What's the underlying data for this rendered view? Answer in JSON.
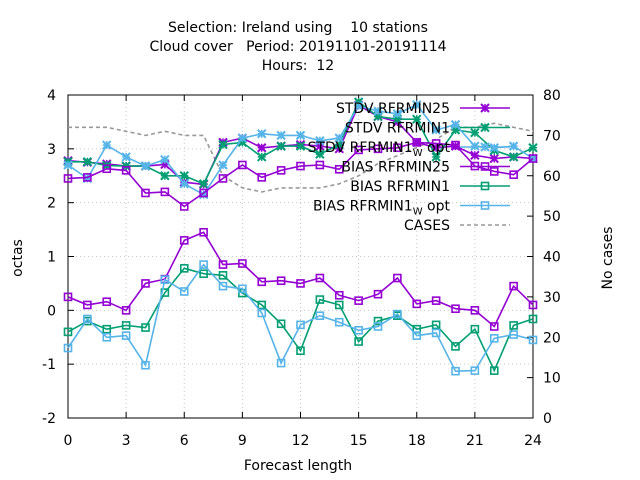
{
  "chart_data": {
    "type": "line",
    "title_lines": [
      "Selection: Ireland using    10 stations",
      "Cloud cover   Period: 20191101-20191114",
      "Hours:  12"
    ],
    "xlabel": "Forecast length",
    "ylabel": "octas",
    "y2label": "No cases",
    "xlim": [
      0,
      24
    ],
    "ylim": [
      -2,
      4
    ],
    "y2lim": [
      0,
      80
    ],
    "x_ticks": [
      0,
      3,
      6,
      9,
      12,
      15,
      18,
      21,
      24
    ],
    "y_ticks": [
      -2,
      -1,
      0,
      1,
      2,
      3,
      4
    ],
    "y2_ticks": [
      0,
      10,
      20,
      30,
      40,
      50,
      60,
      70,
      80
    ],
    "grid": true,
    "legend_position": "top-right",
    "x": [
      0,
      1,
      2,
      3,
      4,
      5,
      6,
      7,
      8,
      9,
      10,
      11,
      12,
      13,
      14,
      15,
      16,
      17,
      18,
      19,
      20,
      21,
      22,
      23,
      24
    ],
    "series": [
      {
        "name": "STDV RFRMIN25",
        "axis": "y",
        "marker": "x",
        "color": "#9400d3",
        "dash": false,
        "values": [
          2.78,
          2.75,
          2.72,
          2.68,
          2.68,
          2.71,
          2.38,
          2.34,
          3.12,
          3.2,
          3.02,
          3.05,
          3.08,
          3.05,
          3.0,
          3.81,
          3.6,
          3.5,
          3.12,
          3.02,
          3.05,
          2.88,
          2.82,
          2.85,
          2.82
        ]
      },
      {
        "name": "STDV RFRMIN1",
        "axis": "y",
        "marker": "x",
        "color": "#009e73",
        "dash": false,
        "values": [
          2.76,
          2.76,
          2.69,
          2.68,
          2.68,
          2.5,
          2.5,
          2.35,
          3.08,
          3.12,
          2.85,
          3.05,
          3.05,
          2.9,
          3.08,
          3.87,
          3.6,
          3.55,
          3.55,
          2.85,
          3.35,
          3.3,
          2.97,
          2.85,
          3.02
        ]
      },
      {
        "name": "STDV RFRMIN1_W opt",
        "label_main": "STDV RFRMIN1",
        "label_sub": "W",
        "label_tail": " opt",
        "axis": "y",
        "marker": "x",
        "color": "#56b4e9",
        "dash": false,
        "values": [
          2.7,
          2.45,
          3.07,
          2.85,
          2.68,
          2.8,
          2.35,
          2.15,
          2.7,
          3.2,
          3.28,
          3.25,
          3.25,
          3.15,
          3.2,
          3.8,
          3.7,
          3.65,
          3.82,
          3.35,
          3.45,
          3.05,
          3.02,
          3.05,
          2.82
        ]
      },
      {
        "name": "BIAS RFRMIN25",
        "axis": "y",
        "marker": "square",
        "color": "#9400d3",
        "dash": false,
        "values": [
          2.45,
          2.47,
          2.63,
          2.6,
          2.18,
          2.2,
          1.93,
          2.18,
          2.45,
          2.7,
          2.47,
          2.6,
          2.68,
          2.7,
          2.62,
          2.98,
          3.0,
          3.02,
          3.12,
          3.1,
          3.07,
          2.68,
          2.58,
          2.52,
          2.82
        ]
      },
      {
        "name": "BIAS RFRMIN1",
        "axis": "y",
        "marker": "square",
        "color": "#009e73",
        "dash": false,
        "values": [
          -0.4,
          -0.2,
          -0.35,
          -0.28,
          -0.32,
          0.33,
          0.78,
          0.68,
          0.65,
          0.32,
          0.1,
          -0.25,
          -0.75,
          0.2,
          0.1,
          -0.58,
          -0.2,
          -0.1,
          -0.35,
          -0.27,
          -0.67,
          -0.35,
          -1.12,
          -0.28,
          -0.16
        ]
      },
      {
        "name": "BIAS RFRMIN1_W opt",
        "label_main": "BIAS RFRMIN1",
        "label_sub": "W",
        "label_tail": " opt",
        "axis": "y",
        "marker": "square",
        "color": "#56b4e9",
        "dash": false,
        "values": [
          -0.7,
          -0.16,
          -0.5,
          -0.47,
          -1.02,
          0.57,
          0.35,
          0.85,
          0.45,
          0.4,
          -0.05,
          -0.98,
          -0.27,
          -0.1,
          -0.22,
          -0.37,
          -0.3,
          -0.07,
          -0.47,
          -0.42,
          -1.13,
          -1.12,
          -0.52,
          -0.45,
          -0.55
        ]
      },
      {
        "name": "CASES",
        "axis": "y2",
        "marker": "none",
        "color": "#999999",
        "dash": true,
        "values": [
          72,
          72,
          72,
          71,
          70,
          71,
          70,
          70,
          60,
          57,
          56,
          57,
          57,
          57,
          58,
          60,
          63,
          65,
          67,
          69,
          72,
          72,
          73,
          72,
          71
        ]
      }
    ],
    "bias_zero_series": {
      "BIAS RFRMIN25": [
        0.25,
        0.1,
        0.16,
        0.0,
        0.5,
        0.58,
        1.3,
        1.45,
        0.85,
        0.87,
        0.53,
        0.55,
        0.5,
        0.6,
        0.28,
        0.18,
        0.3,
        0.6,
        0.12,
        0.18,
        0.03,
        0.0,
        -0.3,
        0.45,
        0.1
      ]
    }
  }
}
